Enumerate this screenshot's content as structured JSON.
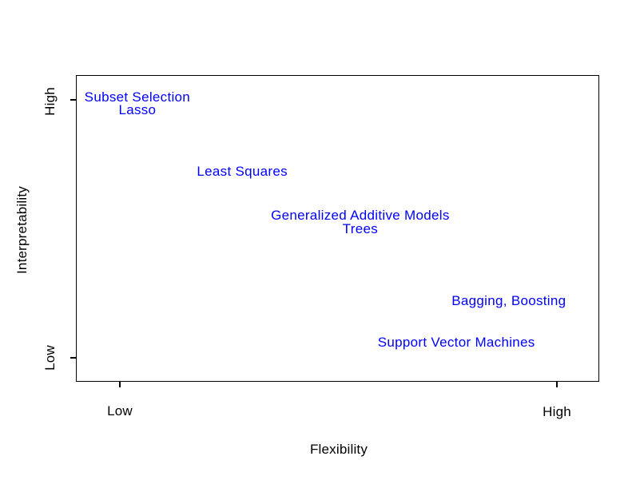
{
  "figure": {
    "background_color": "#ffffff",
    "axis_color": "#000000",
    "method_label_color": "#0000ff"
  },
  "chart_data": {
    "type": "scatter",
    "title": "",
    "xlabel": "Flexibility",
    "ylabel": "Interpretability",
    "xlim": [
      0,
      1
    ],
    "ylim": [
      0,
      1
    ],
    "grid": false,
    "legend": "none",
    "point_style": "text-label-only",
    "label_color": "#0000ff",
    "x_axis": {
      "ticks": [
        {
          "label": "Low",
          "value": 0
        },
        {
          "label": "High",
          "value": 1
        }
      ]
    },
    "y_axis": {
      "ticks": [
        {
          "label": "Low",
          "value": 0
        },
        {
          "label": "High",
          "value": 1
        }
      ]
    },
    "points": [
      {
        "label": "Subset Selection",
        "flexibility": 0.04,
        "interpretability": 1.01
      },
      {
        "label": "Lasso",
        "flexibility": 0.04,
        "interpretability": 0.96
      },
      {
        "label": "Least Squares",
        "flexibility": 0.28,
        "interpretability": 0.72
      },
      {
        "label": "Generalized Additive Models",
        "flexibility": 0.55,
        "interpretability": 0.55
      },
      {
        "label": "Trees",
        "flexibility": 0.55,
        "interpretability": 0.5
      },
      {
        "label": "Bagging, Boosting",
        "flexibility": 0.89,
        "interpretability": 0.22
      },
      {
        "label": "Support Vector Machines",
        "flexibility": 0.77,
        "interpretability": 0.06
      }
    ]
  }
}
